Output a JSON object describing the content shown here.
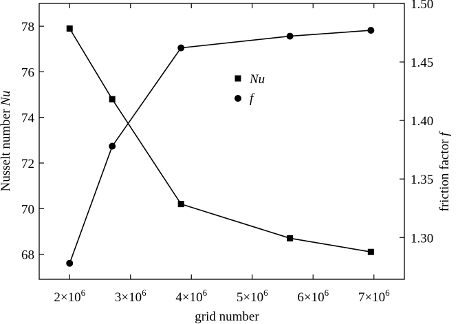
{
  "chart_data": {
    "type": "line",
    "xlabel": "grid number",
    "ylabel_left": {
      "text": "Nusselt number ",
      "var": "Nu"
    },
    "ylabel_right": {
      "text": "friction factor ",
      "var": "f"
    },
    "x_range": [
      1500000,
      7500000
    ],
    "ylim_left": [
      66.9,
      79.0
    ],
    "ylim_right": [
      1.2643,
      1.5
    ],
    "x_ticks": [
      {
        "value": 2000000,
        "base": "2×10",
        "exp": "6"
      },
      {
        "value": 3000000,
        "base": "3×10",
        "exp": "6"
      },
      {
        "value": 4000000,
        "base": "4×10",
        "exp": "6"
      },
      {
        "value": 5000000,
        "base": "5×10",
        "exp": "6"
      },
      {
        "value": 6000000,
        "base": "6×10",
        "exp": "6"
      },
      {
        "value": 7000000,
        "base": "7×10",
        "exp": "6"
      }
    ],
    "y_left_ticks": [
      {
        "value": 68,
        "label": "68"
      },
      {
        "value": 70,
        "label": "70"
      },
      {
        "value": 72,
        "label": "72"
      },
      {
        "value": 74,
        "label": "74"
      },
      {
        "value": 76,
        "label": "76"
      },
      {
        "value": 78,
        "label": "78"
      }
    ],
    "y_right_ticks": [
      {
        "value": 1.3,
        "label": "1.30"
      },
      {
        "value": 1.35,
        "label": "1.35"
      },
      {
        "value": 1.4,
        "label": "1.40"
      },
      {
        "value": 1.45,
        "label": "1.45"
      },
      {
        "value": 1.5,
        "label": "1.50"
      }
    ],
    "series": [
      {
        "name": "Nu",
        "marker": "square",
        "axis": "left",
        "x": [
          2000000,
          2700000,
          3830000,
          5620000,
          6950000
        ],
        "values": [
          77.9,
          74.8,
          70.2,
          68.7,
          68.1
        ]
      },
      {
        "name": "f",
        "marker": "circle",
        "axis": "right",
        "x": [
          2000000,
          2700000,
          3830000,
          5620000,
          6950000
        ],
        "values": [
          1.278,
          1.378,
          1.462,
          1.472,
          1.477
        ]
      }
    ],
    "legend_position": "upper-middle",
    "grid": false,
    "color": "#000000"
  }
}
